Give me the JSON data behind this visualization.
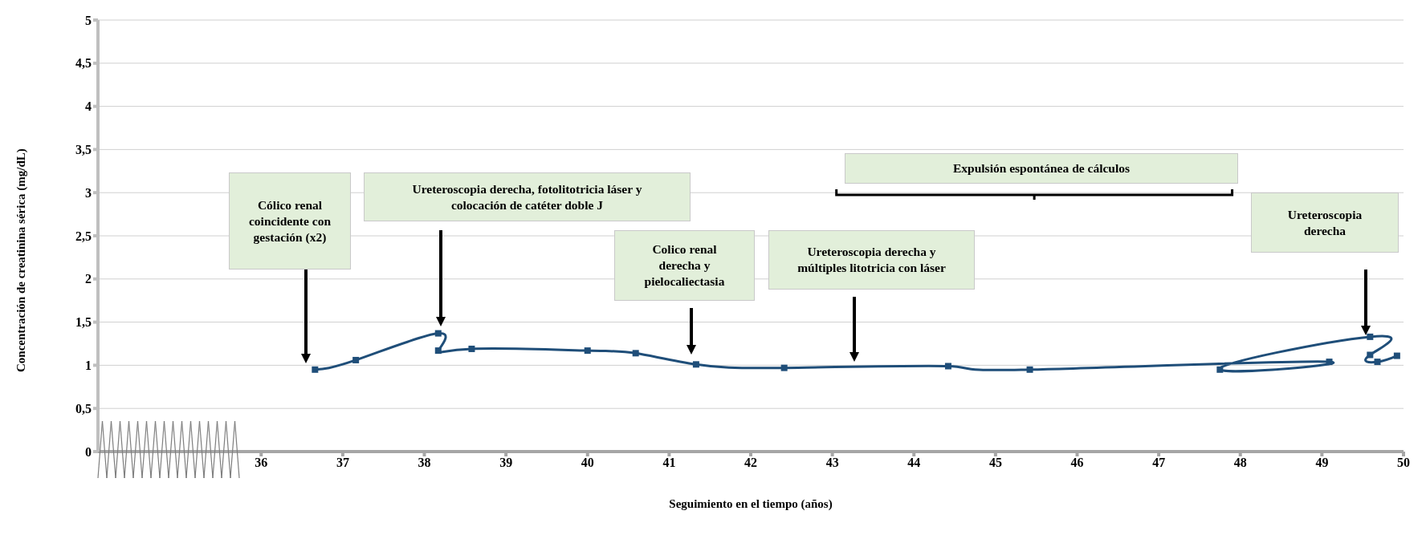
{
  "chart_data": {
    "type": "line",
    "xlabel": "Seguimiento en el tiempo (años)",
    "ylabel": "Concentración de creatinina sérica (mg/dL)",
    "xlim": [
      34,
      50
    ],
    "xticks": [
      36,
      37,
      38,
      39,
      40,
      41,
      42,
      43,
      44,
      45,
      46,
      47,
      48,
      49,
      50
    ],
    "ylim": [
      0,
      5
    ],
    "yticks": [
      0,
      {
        "value": 0.5,
        "label": "0,5"
      },
      1,
      {
        "value": 1.5,
        "label": "1,5"
      },
      2,
      {
        "value": 2.5,
        "label": "2,5"
      },
      3,
      {
        "value": 3.5,
        "label": "3,5"
      },
      4,
      {
        "value": 4.5,
        "label": "4,5"
      },
      5
    ],
    "grid": "y",
    "marker": "square",
    "line_style": "solid",
    "series": [
      {
        "color": "#1f4e79",
        "x": [
          36.66,
          37.16,
          38.17,
          38.17,
          38.58,
          40.0,
          40.59,
          41.33,
          42.41,
          44.42,
          45.42,
          49.09,
          47.75,
          49.59,
          49.59,
          49.68,
          49.92
        ],
        "values": [
          0.95,
          1.06,
          1.37,
          1.17,
          1.19,
          1.17,
          1.14,
          1.01,
          0.97,
          0.99,
          0.95,
          1.04,
          0.95,
          1.33,
          1.12,
          1.04,
          1.11
        ]
      }
    ],
    "annotations": [
      "Cólico renal coincidente con gestación (x2)",
      "Ureteroscopia derecha, fotolitotricia láser  y colocación de catéter doble J",
      "Colico renal derecha y pielocaliectasia",
      "Ureteroscopia derecha y múltiples litotricia con láser",
      "Expulsión espontánea de cálculos",
      "Ureteroscopia derecha"
    ]
  }
}
